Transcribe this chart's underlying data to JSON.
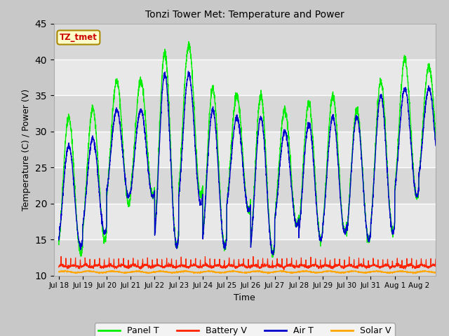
{
  "title": "Tonzi Tower Met: Temperature and Power",
  "xlabel": "Time",
  "ylabel": "Temperature (C) / Power (V)",
  "ylim": [
    10,
    45
  ],
  "legend_labels": [
    "Panel T",
    "Battery V",
    "Air T",
    "Solar V"
  ],
  "panel_color": "#00ee00",
  "air_color": "#0000cc",
  "battery_color": "#ff2200",
  "solar_color": "#ffa500",
  "annotation_text": "TZ_tmet",
  "annotation_bg": "#ffffcc",
  "annotation_border": "#aa8800",
  "annotation_text_color": "#cc0000",
  "fig_bg": "#c8c8c8",
  "plot_bg": "#e8e8e8",
  "panel_peaks": [
    32,
    33,
    37,
    37,
    41,
    42,
    36,
    35,
    35,
    33,
    34,
    35,
    33,
    37,
    40,
    39
  ],
  "panel_troughs": [
    13,
    15,
    20,
    21,
    14,
    21,
    14,
    19,
    13,
    17,
    15,
    16,
    15,
    16,
    21,
    23
  ],
  "air_peaks": [
    28,
    29,
    33,
    33,
    38,
    38,
    33,
    32,
    32,
    30,
    31,
    32,
    32,
    35,
    36,
    36
  ],
  "air_troughs": [
    14,
    16,
    21,
    21,
    14,
    20,
    14,
    19,
    13,
    17,
    15,
    16,
    15,
    16,
    21,
    23
  ],
  "tick_labels": [
    "Jul 18",
    "Jul 19",
    "Jul 20",
    "Jul 21",
    "Jul 22",
    "Jul 23",
    "Jul 24",
    "Jul 25",
    "Jul 26",
    "Jul 27",
    "Jul 28",
    "Jul 29",
    "Jul 30",
    "Jul 31",
    "Aug 1",
    "Aug 2"
  ],
  "yticks": [
    10,
    15,
    20,
    25,
    30,
    35,
    40,
    45
  ]
}
